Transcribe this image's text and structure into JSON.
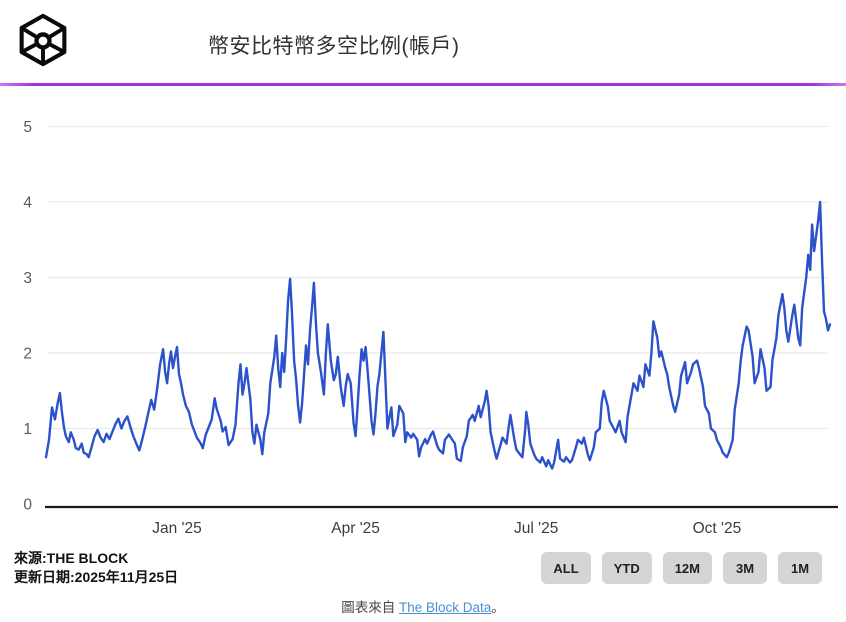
{
  "header": {
    "title": "幣安比特幣多空比例(帳戶)",
    "logo": "the-block-cube-logo"
  },
  "colors": {
    "divider_purple": "#A233E3",
    "line_blue": "#2B52CB",
    "gridline": "#e9e9e9",
    "axis": "#17181a",
    "y_label": "#5b5b5b",
    "x_label": "#3c3c3c",
    "link_blue": "#4A90D2",
    "button_bg": "#d5d5d5"
  },
  "source": {
    "line1": "來源:THE BLOCK",
    "line2": "更新日期:2025年11月25日"
  },
  "range_buttons": [
    {
      "label": "ALL"
    },
    {
      "label": "YTD"
    },
    {
      "label": "12M"
    },
    {
      "label": "3M"
    },
    {
      "label": "1M"
    }
  ],
  "footer": {
    "prefix": "圖表來自",
    "link_text": "The Block Data",
    "suffix": "。"
  },
  "chart_data": {
    "type": "line",
    "title": "幣安比特幣多空比例(帳戶)",
    "xlabel": "",
    "ylabel": "",
    "ylim": [
      0,
      5
    ],
    "y_ticks": [
      0,
      1,
      2,
      3,
      4,
      5
    ],
    "grid": true,
    "legend": "none",
    "x_unit": "days from series start",
    "x_domain_days": [
      0,
      395
    ],
    "x_ticks": [
      {
        "day": 66,
        "label": "Jan '25"
      },
      {
        "day": 156,
        "label": "Apr '25"
      },
      {
        "day": 247,
        "label": "Jul '25"
      },
      {
        "day": 338,
        "label": "Oct '25"
      }
    ],
    "series": [
      {
        "name": "幣安比特幣多空比例(帳戶)",
        "color": "#2B52CB",
        "points": [
          [
            0,
            0.62
          ],
          [
            1.5,
            0.85
          ],
          [
            3,
            1.28
          ],
          [
            4.5,
            1.12
          ],
          [
            6,
            1.35
          ],
          [
            7,
            1.47
          ],
          [
            8,
            1.22
          ],
          [
            9,
            1.02
          ],
          [
            10,
            0.9
          ],
          [
            11.5,
            0.82
          ],
          [
            12.5,
            0.95
          ],
          [
            14,
            0.85
          ],
          [
            15,
            0.74
          ],
          [
            16.5,
            0.72
          ],
          [
            18,
            0.8
          ],
          [
            19,
            0.68
          ],
          [
            20.5,
            0.66
          ],
          [
            21.5,
            0.62
          ],
          [
            23,
            0.76
          ],
          [
            24.5,
            0.9
          ],
          [
            26,
            0.98
          ],
          [
            27.5,
            0.88
          ],
          [
            29,
            0.82
          ],
          [
            30.5,
            0.93
          ],
          [
            32,
            0.86
          ],
          [
            33.5,
            0.96
          ],
          [
            35,
            1.06
          ],
          [
            36.5,
            1.13
          ],
          [
            38,
            1.0
          ],
          [
            39.5,
            1.1
          ],
          [
            41,
            1.16
          ],
          [
            42.5,
            1.02
          ],
          [
            44,
            0.9
          ],
          [
            45.5,
            0.8
          ],
          [
            47,
            0.71
          ],
          [
            48.5,
            0.86
          ],
          [
            50,
            1.02
          ],
          [
            51.5,
            1.2
          ],
          [
            53,
            1.38
          ],
          [
            54.5,
            1.25
          ],
          [
            56,
            1.52
          ],
          [
            57.5,
            1.85
          ],
          [
            59,
            2.05
          ],
          [
            60,
            1.75
          ],
          [
            61,
            1.6
          ],
          [
            62,
            1.86
          ],
          [
            63,
            2.02
          ],
          [
            64,
            1.8
          ],
          [
            65,
            1.95
          ],
          [
            66,
            2.08
          ],
          [
            67,
            1.72
          ],
          [
            68,
            1.6
          ],
          [
            69,
            1.45
          ],
          [
            70.5,
            1.3
          ],
          [
            72,
            1.22
          ],
          [
            73.5,
            1.05
          ],
          [
            75,
            0.95
          ],
          [
            76,
            0.88
          ],
          [
            78,
            0.8
          ],
          [
            79,
            0.74
          ],
          [
            80.5,
            0.92
          ],
          [
            82,
            1.02
          ],
          [
            83.5,
            1.12
          ],
          [
            85,
            1.4
          ],
          [
            86,
            1.26
          ],
          [
            88,
            1.1
          ],
          [
            89,
            0.96
          ],
          [
            90.5,
            1.02
          ],
          [
            92,
            0.78
          ],
          [
            94,
            0.86
          ],
          [
            95.5,
            1.05
          ],
          [
            97,
            1.6
          ],
          [
            98,
            1.85
          ],
          [
            99,
            1.45
          ],
          [
            100,
            1.6
          ],
          [
            101,
            1.8
          ],
          [
            103,
            1.38
          ],
          [
            104,
            0.95
          ],
          [
            105,
            0.8
          ],
          [
            106,
            1.05
          ],
          [
            108,
            0.85
          ],
          [
            109,
            0.66
          ],
          [
            110,
            0.95
          ],
          [
            112,
            1.2
          ],
          [
            113,
            1.6
          ],
          [
            115,
            1.95
          ],
          [
            116,
            2.23
          ],
          [
            117,
            1.8
          ],
          [
            118,
            1.55
          ],
          [
            119,
            2.0
          ],
          [
            120,
            1.75
          ],
          [
            121,
            2.2
          ],
          [
            122,
            2.7
          ],
          [
            123,
            2.98
          ],
          [
            124,
            2.5
          ],
          [
            125,
            1.9
          ],
          [
            126,
            1.65
          ],
          [
            127,
            1.3
          ],
          [
            128,
            1.08
          ],
          [
            129,
            1.32
          ],
          [
            130,
            1.7
          ],
          [
            131,
            2.1
          ],
          [
            132,
            1.85
          ],
          [
            133,
            2.3
          ],
          [
            134,
            2.6
          ],
          [
            135,
            2.93
          ],
          [
            136,
            2.4
          ],
          [
            137,
            2.0
          ],
          [
            138.5,
            1.75
          ],
          [
            140,
            1.45
          ],
          [
            141,
            2.0
          ],
          [
            142,
            2.38
          ],
          [
            143.5,
            1.9
          ],
          [
            145,
            1.64
          ],
          [
            146,
            1.72
          ],
          [
            147,
            1.95
          ],
          [
            148.5,
            1.55
          ],
          [
            150,
            1.3
          ],
          [
            151,
            1.56
          ],
          [
            152,
            1.72
          ],
          [
            153.5,
            1.6
          ],
          [
            155,
            1.07
          ],
          [
            156,
            0.9
          ],
          [
            157,
            1.3
          ],
          [
            158,
            1.72
          ],
          [
            159,
            2.05
          ],
          [
            160,
            1.9
          ],
          [
            161,
            2.08
          ],
          [
            162,
            1.78
          ],
          [
            163,
            1.45
          ],
          [
            164,
            1.1
          ],
          [
            165,
            0.92
          ],
          [
            166,
            1.2
          ],
          [
            167,
            1.56
          ],
          [
            168,
            1.72
          ],
          [
            169,
            2.0
          ],
          [
            170,
            2.28
          ],
          [
            171,
            1.65
          ],
          [
            172,
            1.0
          ],
          [
            173,
            1.15
          ],
          [
            174,
            1.28
          ],
          [
            175,
            0.9
          ],
          [
            177,
            1.05
          ],
          [
            178,
            1.3
          ],
          [
            180,
            1.2
          ],
          [
            181,
            0.82
          ],
          [
            182,
            0.95
          ],
          [
            184,
            0.88
          ],
          [
            185,
            0.93
          ],
          [
            187,
            0.85
          ],
          [
            188,
            0.63
          ],
          [
            189,
            0.75
          ],
          [
            191,
            0.86
          ],
          [
            192,
            0.8
          ],
          [
            194,
            0.92
          ],
          [
            195,
            0.96
          ],
          [
            197,
            0.78
          ],
          [
            198,
            0.72
          ],
          [
            200,
            0.67
          ],
          [
            201,
            0.85
          ],
          [
            203,
            0.92
          ],
          [
            204,
            0.88
          ],
          [
            206,
            0.8
          ],
          [
            207,
            0.6
          ],
          [
            209,
            0.57
          ],
          [
            210,
            0.75
          ],
          [
            212,
            0.9
          ],
          [
            213,
            1.1
          ],
          [
            215,
            1.18
          ],
          [
            216,
            1.1
          ],
          [
            218,
            1.3
          ],
          [
            219,
            1.15
          ],
          [
            221,
            1.35
          ],
          [
            222,
            1.5
          ],
          [
            223,
            1.3
          ],
          [
            224,
            0.95
          ],
          [
            226,
            0.7
          ],
          [
            227,
            0.6
          ],
          [
            229,
            0.78
          ],
          [
            230,
            0.88
          ],
          [
            232,
            0.8
          ],
          [
            233,
            1.0
          ],
          [
            234,
            1.18
          ],
          [
            236,
            0.85
          ],
          [
            237,
            0.72
          ],
          [
            239,
            0.65
          ],
          [
            240,
            0.62
          ],
          [
            241.5,
            1.0
          ],
          [
            242,
            1.22
          ],
          [
            243,
            1.05
          ],
          [
            244,
            0.8
          ],
          [
            246,
            0.65
          ],
          [
            247,
            0.6
          ],
          [
            249,
            0.55
          ],
          [
            250,
            0.62
          ],
          [
            252,
            0.5
          ],
          [
            253,
            0.58
          ],
          [
            255,
            0.47
          ],
          [
            256,
            0.55
          ],
          [
            258,
            0.85
          ],
          [
            259,
            0.6
          ],
          [
            261,
            0.56
          ],
          [
            262,
            0.62
          ],
          [
            264,
            0.55
          ],
          [
            265,
            0.58
          ],
          [
            267,
            0.75
          ],
          [
            268,
            0.85
          ],
          [
            270,
            0.8
          ],
          [
            271,
            0.88
          ],
          [
            273,
            0.65
          ],
          [
            274,
            0.58
          ],
          [
            276,
            0.75
          ],
          [
            277,
            0.95
          ],
          [
            279,
            1.0
          ],
          [
            280,
            1.35
          ],
          [
            281,
            1.5
          ],
          [
            283,
            1.3
          ],
          [
            284,
            1.1
          ],
          [
            286,
            1.0
          ],
          [
            287,
            0.95
          ],
          [
            289,
            1.1
          ],
          [
            290,
            0.95
          ],
          [
            292,
            0.82
          ],
          [
            293,
            1.15
          ],
          [
            295,
            1.45
          ],
          [
            296,
            1.6
          ],
          [
            298,
            1.5
          ],
          [
            299,
            1.7
          ],
          [
            301,
            1.55
          ],
          [
            302,
            1.85
          ],
          [
            304,
            1.7
          ],
          [
            305,
            2.0
          ],
          [
            306,
            2.42
          ],
          [
            308,
            2.2
          ],
          [
            309,
            1.95
          ],
          [
            310,
            2.02
          ],
          [
            312,
            1.8
          ],
          [
            313,
            1.72
          ],
          [
            314,
            1.55
          ],
          [
            316,
            1.3
          ],
          [
            317,
            1.22
          ],
          [
            319,
            1.45
          ],
          [
            320,
            1.7
          ],
          [
            322,
            1.88
          ],
          [
            323,
            1.6
          ],
          [
            325,
            1.75
          ],
          [
            326,
            1.85
          ],
          [
            328,
            1.9
          ],
          [
            329,
            1.8
          ],
          [
            331,
            1.55
          ],
          [
            332,
            1.3
          ],
          [
            334,
            1.2
          ],
          [
            335,
            1.0
          ],
          [
            337,
            0.95
          ],
          [
            338,
            0.85
          ],
          [
            340,
            0.75
          ],
          [
            341,
            0.68
          ],
          [
            343,
            0.62
          ],
          [
            344,
            0.68
          ],
          [
            346,
            0.85
          ],
          [
            347,
            1.25
          ],
          [
            349,
            1.6
          ],
          [
            350,
            1.9
          ],
          [
            351,
            2.1
          ],
          [
            353,
            2.35
          ],
          [
            354,
            2.3
          ],
          [
            356,
            1.95
          ],
          [
            357,
            1.6
          ],
          [
            359,
            1.75
          ],
          [
            360,
            2.05
          ],
          [
            362,
            1.8
          ],
          [
            363,
            1.5
          ],
          [
            365,
            1.55
          ],
          [
            366,
            1.9
          ],
          [
            368,
            2.2
          ],
          [
            369,
            2.5
          ],
          [
            371,
            2.78
          ],
          [
            372,
            2.6
          ],
          [
            373,
            2.3
          ],
          [
            374,
            2.15
          ],
          [
            376,
            2.5
          ],
          [
            377,
            2.64
          ],
          [
            379,
            2.2
          ],
          [
            380,
            2.1
          ],
          [
            381,
            2.6
          ],
          [
            383,
            3.0
          ],
          [
            384,
            3.3
          ],
          [
            385,
            3.1
          ],
          [
            386,
            3.7
          ],
          [
            387,
            3.35
          ],
          [
            388,
            3.55
          ],
          [
            389,
            3.75
          ],
          [
            390,
            4.0
          ],
          [
            391,
            3.2
          ],
          [
            392,
            2.55
          ],
          [
            393,
            2.45
          ],
          [
            394,
            2.3
          ],
          [
            395,
            2.38
          ]
        ]
      }
    ]
  }
}
